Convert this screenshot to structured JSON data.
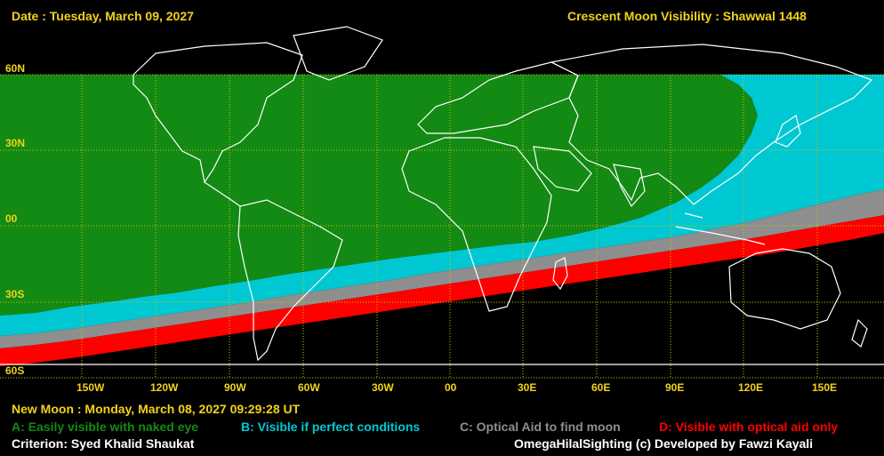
{
  "header": {
    "date": "Date : Tuesday, March 09, 2027",
    "title": "Crescent Moon Visibility : Shawwal  1448"
  },
  "latitude_labels": [
    "60N",
    "30N",
    "00",
    "30S",
    "60S"
  ],
  "longitude_labels": [
    "150W",
    "120W",
    "90W",
    "60W",
    "30W",
    "00",
    "30E",
    "60E",
    "90E",
    "120E",
    "150E"
  ],
  "footer": {
    "new_moon": "New Moon : Monday, March 08, 2027  09:29:28  UT",
    "legend": {
      "a": "A: Easily visible with naked eye",
      "b": "B: Visible if perfect conditions",
      "c": "C: Optical Aid to find moon",
      "d": "D: Visible with optical aid only"
    },
    "criterion": "Criterion: Syed Khalid Shaukat",
    "credit": "OmegaHilalSighting  (c)  Developed by Fawzi Kayali"
  },
  "colors": {
    "zone_a": "#138a13",
    "zone_b": "#00c8d2",
    "zone_c": "#8e8e8e",
    "zone_d": "#ff0000",
    "background": "#000000",
    "label_yellow": "#f2d21c",
    "grid": "#c8c800",
    "coastline": "#ffffff"
  },
  "map": {
    "zones": [
      {
        "name": "A",
        "visibility": "Easily visible with naked eye"
      },
      {
        "name": "B",
        "visibility": "Visible if perfect conditions"
      },
      {
        "name": "C",
        "visibility": "Optical Aid to find moon"
      },
      {
        "name": "D",
        "visibility": "Visible with optical aid only"
      }
    ]
  }
}
